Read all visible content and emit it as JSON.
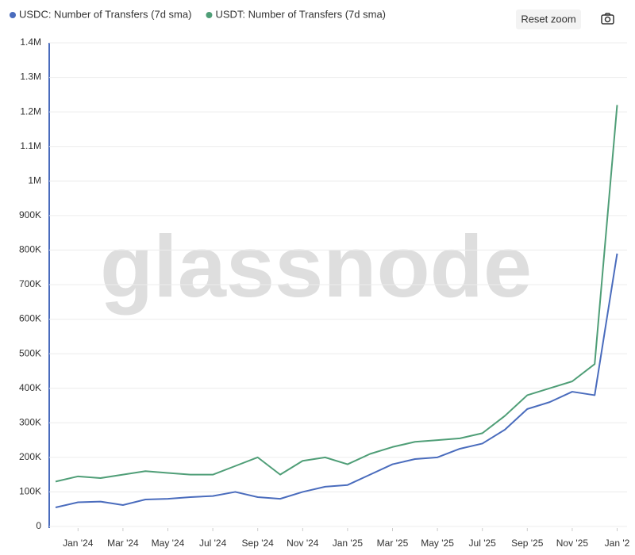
{
  "chart_data": {
    "type": "line",
    "watermark": "glassnode",
    "reset_button": "Reset zoom",
    "x": [
      "2023-12",
      "2024-01",
      "2024-02",
      "2024-03",
      "2024-04",
      "2024-05",
      "2024-06",
      "2024-07",
      "2024-08",
      "2024-09",
      "2024-10",
      "2024-11",
      "2024-12",
      "2025-01",
      "2025-02",
      "2025-03",
      "2025-04",
      "2025-05",
      "2025-06",
      "2025-07",
      "2025-08",
      "2025-09",
      "2025-10",
      "2025-11",
      "2025-12",
      "2026-01"
    ],
    "series": [
      {
        "name": "USDC: Number of Transfers (7d sma)",
        "color": "#4a6cbd",
        "values": [
          55000,
          70000,
          72000,
          62000,
          78000,
          80000,
          85000,
          88000,
          100000,
          85000,
          80000,
          100000,
          115000,
          120000,
          150000,
          180000,
          195000,
          200000,
          225000,
          240000,
          280000,
          340000,
          360000,
          390000,
          380000,
          790000
        ]
      },
      {
        "name": "USDT: Number of Transfers (7d sma)",
        "color": "#4f9e77",
        "values": [
          130000,
          145000,
          140000,
          150000,
          160000,
          155000,
          150000,
          150000,
          175000,
          200000,
          150000,
          190000,
          200000,
          180000,
          210000,
          230000,
          245000,
          250000,
          255000,
          270000,
          320000,
          380000,
          400000,
          420000,
          470000,
          1220000
        ]
      }
    ],
    "ylim": [
      0,
      1400000
    ],
    "yticks": [
      0,
      {
        "value": 100000,
        "label": "100K"
      },
      {
        "value": 200000,
        "label": "200K"
      },
      {
        "value": 300000,
        "label": "300K"
      },
      {
        "value": 400000,
        "label": "400K"
      },
      {
        "value": 500000,
        "label": "500K"
      },
      {
        "value": 600000,
        "label": "600K"
      },
      {
        "value": 700000,
        "label": "700K"
      },
      {
        "value": 800000,
        "label": "800K"
      },
      {
        "value": 900000,
        "label": "900K"
      },
      {
        "value": 1000000,
        "label": "1M"
      },
      {
        "value": 1100000,
        "label": "1.1M"
      },
      {
        "value": 1200000,
        "label": "1.2M"
      },
      {
        "value": 1300000,
        "label": "1.3M"
      },
      {
        "value": 1400000,
        "label": "1.4M"
      }
    ],
    "xticks": [
      {
        "value": "2024-01",
        "label": "Jan '24"
      },
      {
        "value": "2024-03",
        "label": "Mar '24"
      },
      {
        "value": "2024-05",
        "label": "May '24"
      },
      {
        "value": "2024-07",
        "label": "Jul '24"
      },
      {
        "value": "2024-09",
        "label": "Sep '24"
      },
      {
        "value": "2024-11",
        "label": "Nov '24"
      },
      {
        "value": "2025-01",
        "label": "Jan '25"
      },
      {
        "value": "2025-03",
        "label": "Mar '25"
      },
      {
        "value": "2025-05",
        "label": "May '25"
      },
      {
        "value": "2025-07",
        "label": "Jul '25"
      },
      {
        "value": "2025-09",
        "label": "Sep '25"
      },
      {
        "value": "2025-11",
        "label": "Nov '25"
      },
      {
        "value": "2026-01",
        "label": "Jan '2"
      }
    ],
    "grid": true
  }
}
